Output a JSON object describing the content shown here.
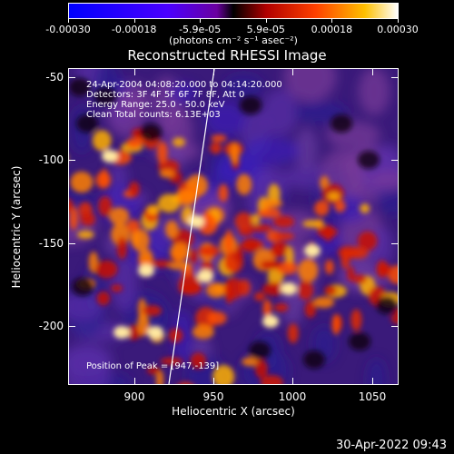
{
  "colorbar": {
    "labels": [
      "-0.00030",
      "-0.00018",
      "-5.9e-05",
      "5.9e-05",
      "0.00018",
      "0.00030"
    ],
    "units": "(photons cm⁻² s⁻¹ asec⁻²)"
  },
  "title": "Reconstructed RHESSI Image",
  "annotations": {
    "time_range": "24-Apr-2004 04:08:20.000 to 04:14:20.000",
    "detectors": "Detectors: 3F 4F 5F 6F 7F 8F, Att 0",
    "energy_range": "Energy Range: 25.0 - 50.0 keV",
    "clean": "Clean    Total counts: 6.13E+03",
    "peak": "Position of Peak = [947,-139]"
  },
  "axes": {
    "xlabel": "Heliocentric X (arcsec)",
    "ylabel": "Heliocentric Y (arcsec)",
    "xticks": [
      "900",
      "950",
      "1000",
      "1050"
    ],
    "yticks": [
      "-50",
      "-100",
      "-150",
      "-200"
    ]
  },
  "timestamp": "30-Apr-2022 09:43",
  "colors": {
    "cool": "#3b00a8",
    "hot": "#ff3a00",
    "peak": "#ffffc0"
  }
}
